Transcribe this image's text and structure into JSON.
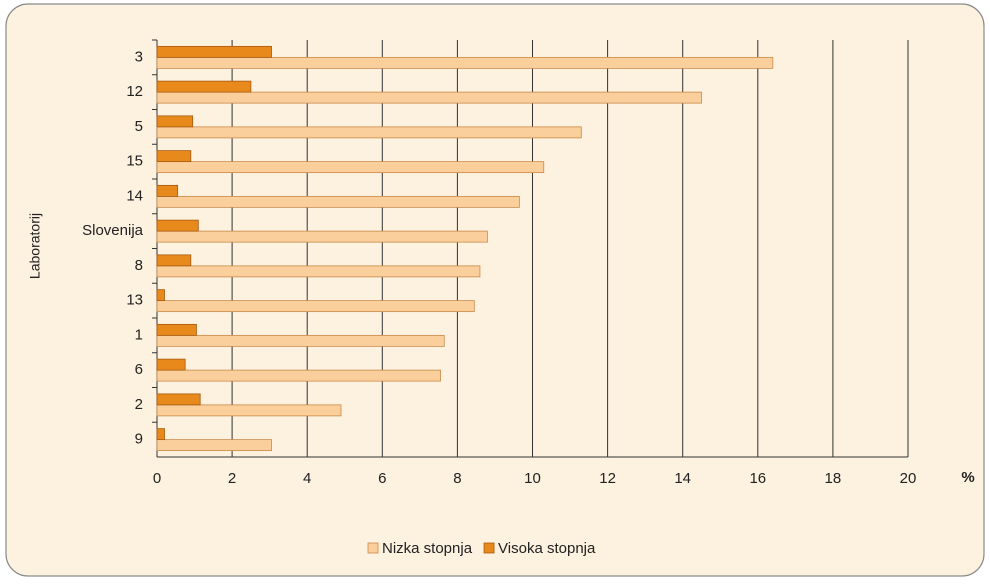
{
  "chart_data": {
    "type": "hbar",
    "y_label": "Laboratorij",
    "x_unit": "%",
    "categories": [
      "3",
      "12",
      "5",
      "15",
      "14",
      "Slovenija",
      "8",
      "13",
      "1",
      "6",
      "2",
      "9"
    ],
    "series": [
      {
        "name": "Nizka stopnja",
        "color": "#fbcf9c",
        "values": [
          16.4,
          14.5,
          11.3,
          10.3,
          9.65,
          8.8,
          8.6,
          8.45,
          7.65,
          7.55,
          4.9,
          3.05
        ]
      },
      {
        "name": "Visoka stopnja",
        "color": "#e8891c",
        "values": [
          3.05,
          2.5,
          0.95,
          0.9,
          0.55,
          1.1,
          0.9,
          0.2,
          1.05,
          0.75,
          1.15,
          0.2
        ]
      }
    ],
    "xlim": [
      0,
      20
    ],
    "xticks": [
      0,
      2,
      4,
      6,
      8,
      10,
      12,
      14,
      16,
      18,
      20
    ],
    "grid": true
  }
}
